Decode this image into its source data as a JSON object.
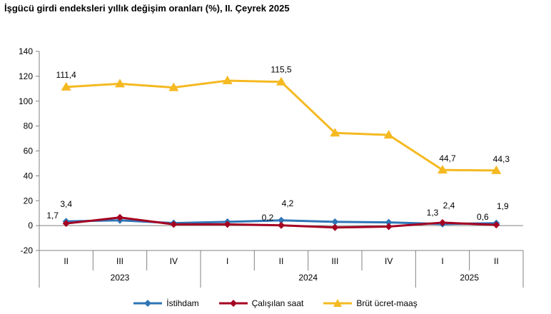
{
  "title": "İşgücü girdi endeksleri yıllık değişim oranları (%), II. Çeyrek 2025",
  "chart_data": {
    "type": "line",
    "categories": [
      "II",
      "III",
      "IV",
      "I",
      "II",
      "III",
      "IV",
      "I",
      "II"
    ],
    "years": [
      {
        "label": "2023",
        "span": 3
      },
      {
        "label": "2024",
        "span": 4
      },
      {
        "label": "2025",
        "span": 2
      }
    ],
    "ylim": [
      -20,
      140
    ],
    "yticks": [
      -20,
      0,
      20,
      40,
      60,
      80,
      100,
      120,
      140
    ],
    "series": [
      {
        "name": "İstihdam",
        "color": "#2E75B6",
        "marker": "diamond",
        "values": [
          3.4,
          4.2,
          2.0,
          3.0,
          4.2,
          3.0,
          2.6,
          1.3,
          1.9
        ],
        "labels": [
          {
            "index": 0,
            "text": "3,4",
            "pos": "above"
          },
          {
            "index": 4,
            "text": "4,2",
            "pos": "above-right"
          },
          {
            "index": 8,
            "text": "1,9",
            "pos": "above-right"
          }
        ]
      },
      {
        "name": "Çalışılan saat",
        "color": "#A50021",
        "marker": "diamond",
        "values": [
          1.7,
          6.5,
          1.0,
          1.0,
          0.2,
          -1.5,
          -0.8,
          2.4,
          0.6
        ],
        "labels": [
          {
            "index": 0,
            "text": "1,7",
            "pos": "left"
          },
          {
            "index": 4,
            "text": "0,2",
            "pos": "left"
          },
          {
            "index": 7,
            "text": "2,4",
            "pos": "above-right"
          },
          {
            "index": 8,
            "text": "0,6",
            "pos": "left"
          }
        ]
      },
      {
        "name": "Brüt ücret-maaş",
        "color": "#F5B921",
        "marker": "triangle",
        "values": [
          111.4,
          114.0,
          111.0,
          116.5,
          115.5,
          74.5,
          72.8,
          44.7,
          44.3
        ],
        "labels": [
          {
            "index": 0,
            "text": "111,4",
            "pos": "above"
          },
          {
            "index": 4,
            "text": "115,5",
            "pos": "above"
          },
          {
            "index": 7,
            "text": "44,7",
            "pos": "above-right"
          },
          {
            "index": 8,
            "text": "44,3",
            "pos": "above-right"
          }
        ]
      }
    ],
    "extra_labels": [
      {
        "series": 0,
        "index": 7,
        "text": "1,3"
      }
    ],
    "legend_position": "bottom",
    "grid": false
  }
}
